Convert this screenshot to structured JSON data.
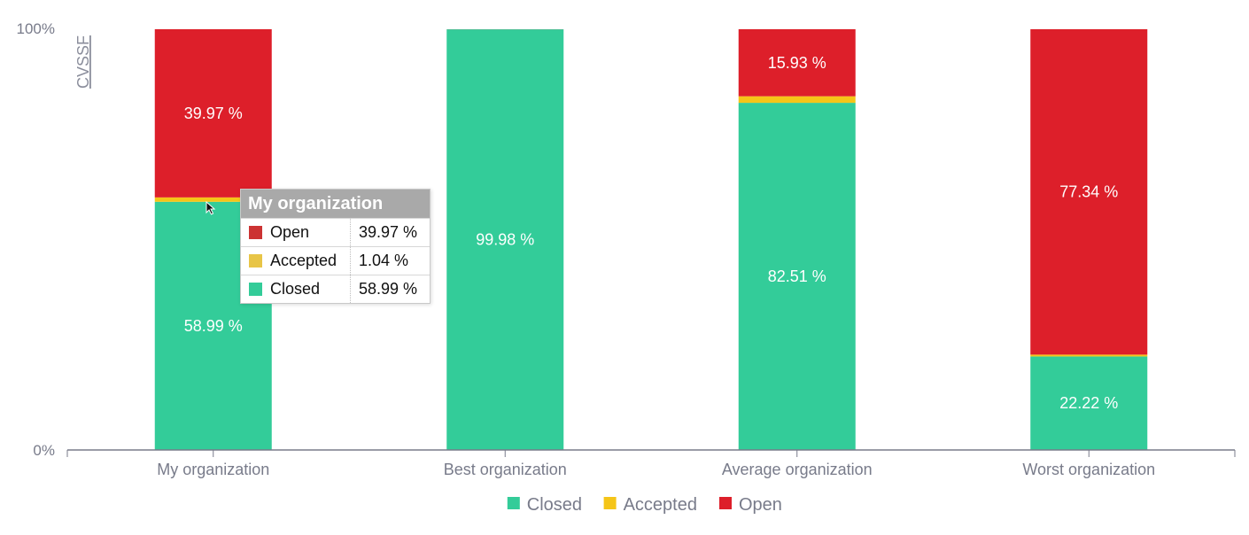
{
  "colors": {
    "closed": "#33cc99",
    "accepted": "#f5c518",
    "open": "#dd1f2a",
    "axis": "#787b8a"
  },
  "chart_data": {
    "type": "bar",
    "stacked": true,
    "categories": [
      "My organization",
      "Best organization",
      "Average organization",
      "Worst organization"
    ],
    "series": [
      {
        "name": "Closed",
        "values": [
          58.99,
          99.98,
          82.51,
          22.22
        ],
        "labels": [
          "58.99 %",
          "99.98 %",
          "82.51 %",
          "22.22 %"
        ]
      },
      {
        "name": "Accepted",
        "values": [
          1.04,
          0.0,
          1.56,
          0.44
        ],
        "labels": [
          "",
          "",
          "",
          ""
        ]
      },
      {
        "name": "Open",
        "values": [
          39.97,
          0.02,
          15.93,
          77.34
        ],
        "labels": [
          "39.97 %",
          "",
          "15.93 %",
          "77.34 %"
        ]
      }
    ],
    "yaxis": {
      "label": "CVSSF",
      "ticks": [
        "0%",
        "100%"
      ],
      "ylim": [
        0,
        100
      ]
    },
    "legend": {
      "placement": "bottom-center",
      "items": [
        "Closed",
        "Accepted",
        "Open"
      ]
    },
    "grid": false
  },
  "tooltip": {
    "title": "My organization",
    "rows": [
      {
        "name": "Open",
        "value": "39.97 %"
      },
      {
        "name": "Accepted",
        "value": "1.04 %"
      },
      {
        "name": "Closed",
        "value": "58.99 %"
      }
    ]
  }
}
